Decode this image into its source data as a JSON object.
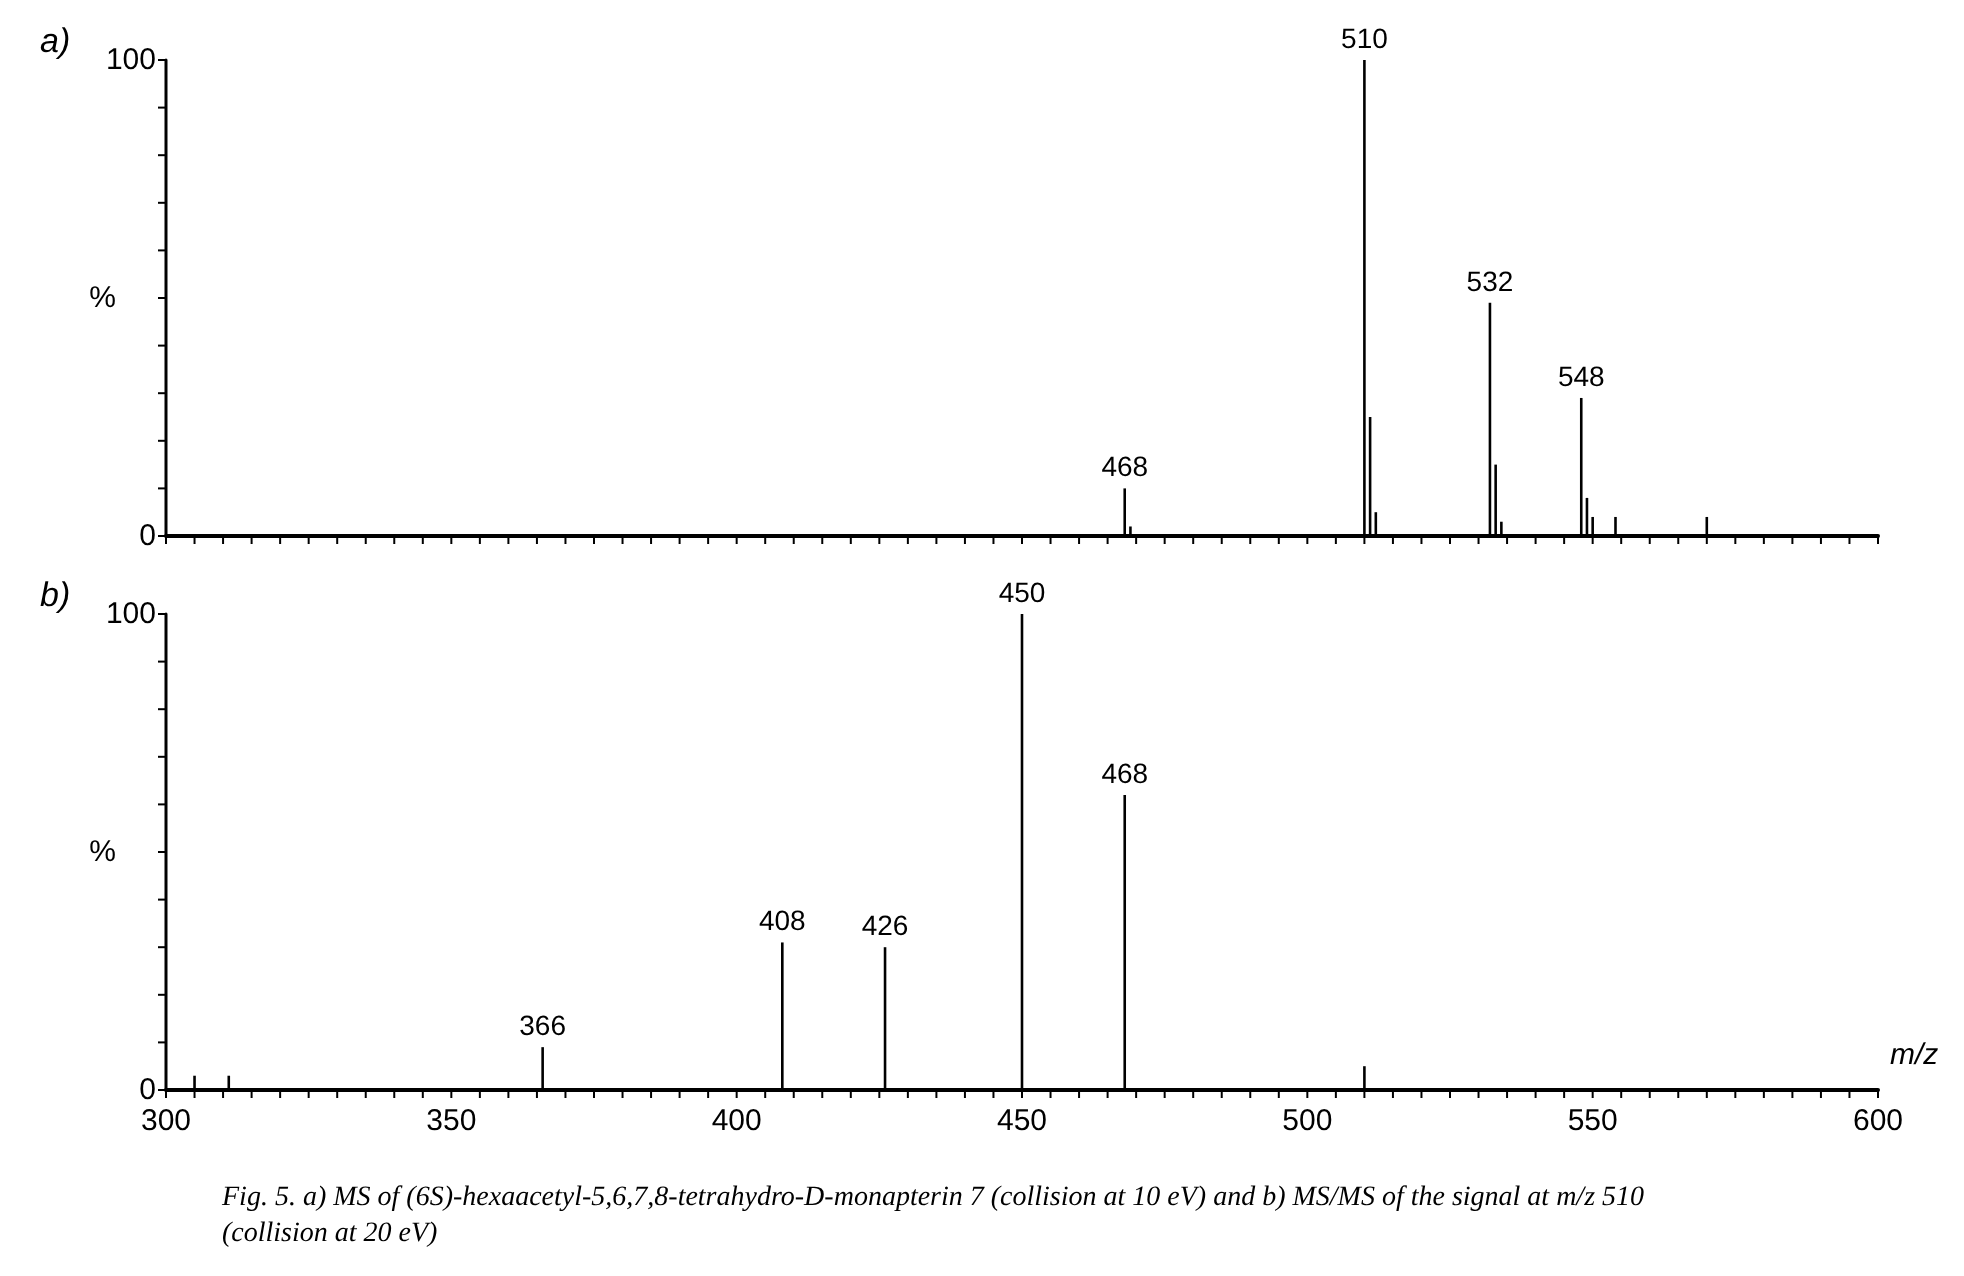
{
  "chart_data": [
    {
      "type": "bar",
      "title": "a)",
      "ylabel": "%",
      "tick_labels": "y",
      "grid": false,
      "annotations": [
        {
          "text": "468",
          "x": 468,
          "y": 10
        },
        {
          "text": "510",
          "x": 510,
          "y": 100
        },
        {
          "text": "532",
          "x": 532,
          "y": 49
        },
        {
          "text": "548",
          "x": 548,
          "y": 29
        }
      ],
      "x": [
        468,
        469,
        510,
        511,
        512,
        532,
        533,
        534,
        548,
        549,
        550,
        554,
        570
      ],
      "values": [
        10,
        2,
        100,
        25,
        5,
        49,
        15,
        3,
        29,
        8,
        4,
        4,
        4
      ],
      "color": "#000000",
      "xlim": [
        300,
        600
      ],
      "xticks": [
        300,
        {
          "value": 305,
          "label": null
        },
        {
          "value": 310,
          "label": null
        },
        {
          "value": 315,
          "label": null
        },
        {
          "value": 320,
          "label": null
        },
        {
          "value": 325,
          "label": null
        },
        {
          "value": 330,
          "label": null
        },
        {
          "value": 335,
          "label": null
        },
        {
          "value": 340,
          "label": null
        },
        {
          "value": 345,
          "label": null
        },
        350,
        {
          "value": 355,
          "label": null
        },
        {
          "value": 360,
          "label": null
        },
        {
          "value": 365,
          "label": null
        },
        {
          "value": 370,
          "label": null
        },
        {
          "value": 375,
          "label": null
        },
        {
          "value": 380,
          "label": null
        },
        {
          "value": 385,
          "label": null
        },
        {
          "value": 390,
          "label": null
        },
        {
          "value": 395,
          "label": null
        },
        400,
        {
          "value": 405,
          "label": null
        },
        {
          "value": 410,
          "label": null
        },
        {
          "value": 415,
          "label": null
        },
        {
          "value": 420,
          "label": null
        },
        {
          "value": 425,
          "label": null
        },
        {
          "value": 430,
          "label": null
        },
        {
          "value": 435,
          "label": null
        },
        {
          "value": 440,
          "label": null
        },
        {
          "value": 445,
          "label": null
        },
        450,
        {
          "value": 455,
          "label": null
        },
        {
          "value": 460,
          "label": null
        },
        {
          "value": 465,
          "label": null
        },
        {
          "value": 470,
          "label": null
        },
        {
          "value": 475,
          "label": null
        },
        {
          "value": 480,
          "label": null
        },
        {
          "value": 485,
          "label": null
        },
        {
          "value": 490,
          "label": null
        },
        {
          "value": 495,
          "label": null
        },
        500,
        {
          "value": 505,
          "label": null
        },
        {
          "value": 510,
          "label": null
        },
        {
          "value": 515,
          "label": null
        },
        {
          "value": 520,
          "label": null
        },
        {
          "value": 525,
          "label": null
        },
        {
          "value": 530,
          "label": null
        },
        {
          "value": 535,
          "label": null
        },
        {
          "value": 540,
          "label": null
        },
        {
          "value": 545,
          "label": null
        },
        550,
        {
          "value": 555,
          "label": null
        },
        {
          "value": 560,
          "label": null
        },
        {
          "value": 565,
          "label": null
        },
        {
          "value": 570,
          "label": null
        },
        {
          "value": 575,
          "label": null
        },
        {
          "value": 580,
          "label": null
        },
        {
          "value": 585,
          "label": null
        },
        {
          "value": 590,
          "label": null
        },
        {
          "value": 595,
          "label": null
        },
        600
      ],
      "ylim": [
        0,
        100
      ],
      "yticks": [
        {
          "value": 0,
          "label": "0"
        },
        {
          "value": 10,
          "label": null
        },
        {
          "value": 20,
          "label": null
        },
        {
          "value": 30,
          "label": null
        },
        {
          "value": 40,
          "label": null
        },
        {
          "value": 50,
          "label": null
        },
        {
          "value": 60,
          "label": null
        },
        {
          "value": 70,
          "label": null
        },
        {
          "value": 80,
          "label": null
        },
        {
          "value": 90,
          "label": null
        },
        {
          "value": 100,
          "label": "100"
        }
      ]
    },
    {
      "type": "bar",
      "title": "b)",
      "ylabel": "%",
      "xlabel": "m/z",
      "grid": false,
      "x": [
        305,
        311,
        366,
        408,
        426,
        450,
        468,
        510
      ],
      "values": [
        3,
        3,
        9,
        31,
        30,
        100,
        62,
        5
      ],
      "color": "#000000",
      "xlim": [
        300,
        600
      ],
      "xticks": [
        300,
        {
          "value": 305,
          "label": null
        },
        {
          "value": 310,
          "label": null
        },
        {
          "value": 315,
          "label": null
        },
        {
          "value": 320,
          "label": null
        },
        {
          "value": 325,
          "label": null
        },
        {
          "value": 330,
          "label": null
        },
        {
          "value": 335,
          "label": null
        },
        {
          "value": 340,
          "label": null
        },
        {
          "value": 345,
          "label": null
        },
        350,
        {
          "value": 355,
          "label": null
        },
        {
          "value": 360,
          "label": null
        },
        {
          "value": 365,
          "label": null
        },
        {
          "value": 370,
          "label": null
        },
        {
          "value": 375,
          "label": null
        },
        {
          "value": 380,
          "label": null
        },
        {
          "value": 385,
          "label": null
        },
        {
          "value": 390,
          "label": null
        },
        {
          "value": 395,
          "label": null
        },
        400,
        {
          "value": 405,
          "label": null
        },
        {
          "value": 410,
          "label": null
        },
        {
          "value": 415,
          "label": null
        },
        {
          "value": 420,
          "label": null
        },
        {
          "value": 425,
          "label": null
        },
        {
          "value": 430,
          "label": null
        },
        {
          "value": 435,
          "label": null
        },
        {
          "value": 440,
          "label": null
        },
        {
          "value": 445,
          "label": null
        },
        450,
        {
          "value": 455,
          "label": null
        },
        {
          "value": 460,
          "label": null
        },
        {
          "value": 465,
          "label": null
        },
        {
          "value": 470,
          "label": null
        },
        {
          "value": 475,
          "label": null
        },
        {
          "value": 480,
          "label": null
        },
        {
          "value": 485,
          "label": null
        },
        {
          "value": 490,
          "label": null
        },
        {
          "value": 495,
          "label": null
        },
        500,
        {
          "value": 505,
          "label": null
        },
        {
          "value": 510,
          "label": null
        },
        {
          "value": 515,
          "label": null
        },
        {
          "value": 520,
          "label": null
        },
        {
          "value": 525,
          "label": null
        },
        {
          "value": 530,
          "label": null
        },
        {
          "value": 535,
          "label": null
        },
        {
          "value": 540,
          "label": null
        },
        {
          "value": 545,
          "label": null
        },
        550,
        {
          "value": 555,
          "label": null
        },
        {
          "value": 560,
          "label": null
        },
        {
          "value": 565,
          "label": null
        },
        {
          "value": 570,
          "label": null
        },
        {
          "value": 575,
          "label": null
        },
        {
          "value": 580,
          "label": null
        },
        {
          "value": 585,
          "label": null
        },
        {
          "value": 590,
          "label": null
        },
        {
          "value": 595,
          "label": null
        },
        600
      ],
      "ylim": [
        0,
        100
      ],
      "yticks": [
        {
          "value": 0,
          "label": "0"
        },
        {
          "value": 10,
          "label": null
        },
        {
          "value": 20,
          "label": null
        },
        {
          "value": 30,
          "label": null
        },
        {
          "value": 40,
          "label": null
        },
        {
          "value": 50,
          "label": null
        },
        {
          "value": 60,
          "label": null
        },
        {
          "value": 70,
          "label": null
        },
        {
          "value": 80,
          "label": null
        },
        {
          "value": 90,
          "label": null
        },
        {
          "value": 100,
          "label": "100"
        }
      ],
      "annotations": [
        {
          "text": "366",
          "x": 366,
          "y": 9
        },
        {
          "text": "408",
          "x": 408,
          "y": 31
        },
        {
          "text": "426",
          "x": 426,
          "y": 30
        },
        {
          "text": "450",
          "x": 450,
          "y": 100
        },
        {
          "text": "468",
          "x": 468,
          "y": 62
        },
        "Fig. 5. a) MS of (6S)-hexaacetyl-5,6,7,8-tetrahydro-D-monapterin 7 (collision at 10 eV) and b) MS/MS of the signal at m/z 510 (collision at 20 eV)"
      ]
    }
  ]
}
